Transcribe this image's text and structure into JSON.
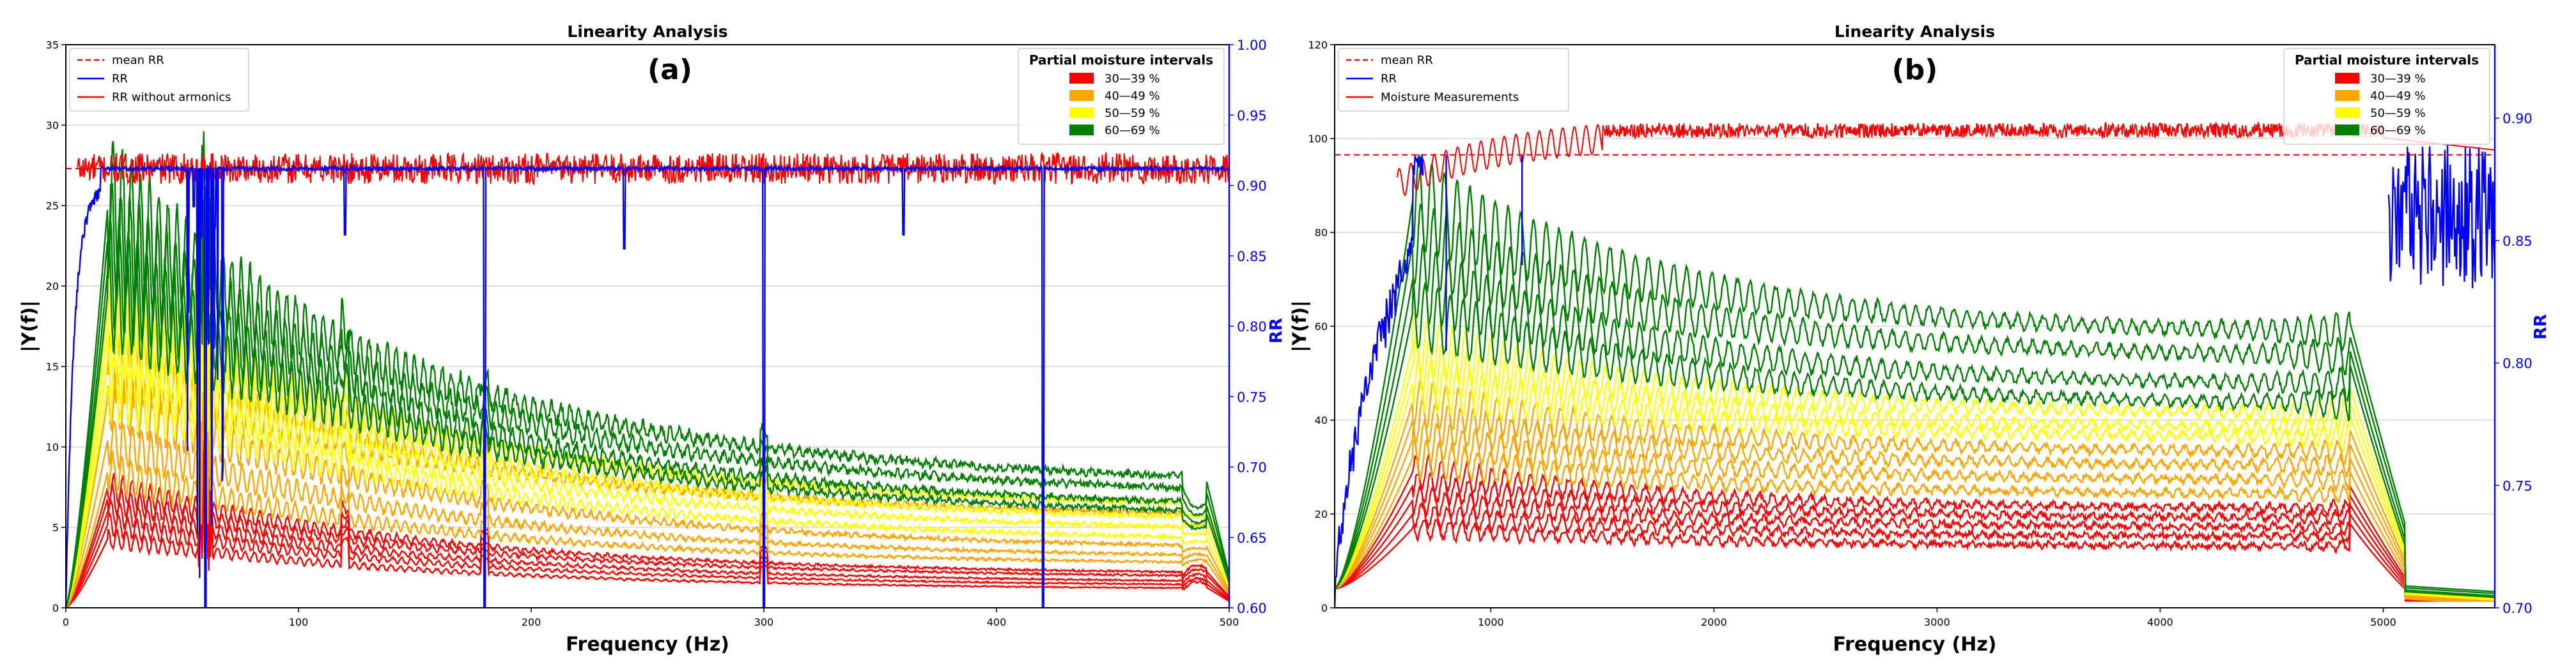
{
  "chart_data": [
    {
      "type": "line",
      "panel_label": "(a)",
      "title": "Linearity Analysis",
      "xlabel": "Frequency (Hz)",
      "ylabel": "|Y(f)|",
      "y2label": "RR",
      "xlim": [
        0,
        500
      ],
      "ylim": [
        0,
        35
      ],
      "y2lim": [
        0.6,
        1.0
      ],
      "xticks": [
        0,
        100,
        200,
        300,
        400,
        500
      ],
      "xtick_labels": [
        "0",
        "100",
        "200",
        "300",
        "400",
        "500"
      ],
      "yticks": [
        0,
        5,
        10,
        15,
        20,
        25,
        30,
        35
      ],
      "ytick_labels": [
        "0",
        "5",
        "10",
        "15",
        "20",
        "25",
        "30",
        "35"
      ],
      "y2ticks": [
        0.6,
        0.65,
        0.7,
        0.75,
        0.8,
        0.85,
        0.9,
        0.95,
        1.0
      ],
      "y2tick_labels": [
        "0.60",
        "0.65",
        "0.70",
        "0.75",
        "0.80",
        "0.85",
        "0.90",
        "0.95",
        "1.00"
      ],
      "legend_left": [
        {
          "label": "mean RR",
          "color": "#ff0000",
          "style": "dashed"
        },
        {
          "label": "RR",
          "color": "#0000ff",
          "style": "solid"
        },
        {
          "label": "RR without armonics",
          "color": "#ff0000",
          "style": "solid"
        }
      ],
      "legend_right_title": "Partial moisture intervals",
      "legend_right": [
        {
          "label": "30—39 %",
          "color": "#ff0000"
        },
        {
          "label": "40—49 %",
          "color": "#ffa500"
        },
        {
          "label": "50—59 %",
          "color": "#ffff00"
        },
        {
          "label": "60—69 %",
          "color": "#008000"
        }
      ],
      "mean_rr": 0.912,
      "rr_without_harmonics_level": 0.912,
      "rr_dips": [
        {
          "x": 55,
          "y": 0.885
        },
        {
          "x": 60,
          "y": 0.6
        },
        {
          "x": 64,
          "y": 0.87
        },
        {
          "x": 120,
          "y": 0.865
        },
        {
          "x": 180,
          "y": 0.6
        },
        {
          "x": 240,
          "y": 0.855
        },
        {
          "x": 300,
          "y": 0.6
        },
        {
          "x": 360,
          "y": 0.865
        },
        {
          "x": 420,
          "y": 0.6
        }
      ],
      "moisture_series": [
        {
          "group": "30—39 %",
          "color": "#ff0000",
          "peak": 7.5,
          "end": 2.0,
          "tail": 3.0,
          "bumps": [
            0.35,
            0.55,
            0.25
          ]
        },
        {
          "group": "30—39 %",
          "color": "#ff0000",
          "peak": 6.8,
          "end": 1.8,
          "tail": 2.7,
          "bumps": [
            0.3,
            0.5,
            0.25
          ]
        },
        {
          "group": "30—39 %",
          "color": "#ff0000",
          "peak": 6.0,
          "end": 1.5,
          "tail": 2.4,
          "bumps": [
            0.3,
            0.45,
            0.2
          ]
        },
        {
          "group": "30—39 %",
          "color": "#ff0000",
          "peak": 5.2,
          "end": 1.3,
          "tail": 2.1,
          "bumps": [
            0.25,
            0.4,
            0.2
          ]
        },
        {
          "group": "30—39 %",
          "color": "#ff0000",
          "peak": 4.3,
          "end": 1.1,
          "tail": 1.9,
          "bumps": [
            0.25,
            0.35,
            0.2
          ]
        },
        {
          "group": "40—49 %",
          "color": "#ffa500",
          "peak": 13.0,
          "end": 3.5,
          "tail": 3.8,
          "bumps": [
            0.5,
            0.8,
            0.3
          ]
        },
        {
          "group": "40—49 %",
          "color": "#ffa500",
          "peak": 10.5,
          "end": 3.0,
          "tail": 3.5,
          "bumps": [
            0.45,
            0.7,
            0.3
          ]
        },
        {
          "group": "40—49 %",
          "color": "#ffa500",
          "peak": 8.5,
          "end": 2.6,
          "tail": 3.2,
          "bumps": [
            0.4,
            0.6,
            0.3
          ]
        },
        {
          "group": "40—49 %",
          "color": "#ffa500",
          "peak": 15.5,
          "end": 5.5,
          "tail": 4.8,
          "bumps": [
            0.6,
            0.9,
            0.35
          ]
        },
        {
          "group": "50—59 %",
          "color": "#ffff00",
          "peak": 18.5,
          "end": 6.0,
          "tail": 5.5,
          "bumps": [
            0.7,
            1.0,
            0.4
          ]
        },
        {
          "group": "50—59 %",
          "color": "#ffff00",
          "peak": 17.0,
          "end": 5.2,
          "tail": 5.0,
          "bumps": [
            0.7,
            1.0,
            0.4
          ]
        },
        {
          "group": "50—59 %",
          "color": "#ffff00",
          "peak": 15.5,
          "end": 4.6,
          "tail": 4.6,
          "bumps": [
            0.6,
            0.9,
            0.35
          ]
        },
        {
          "group": "50—59 %",
          "color": "#ffff00",
          "peak": 14.0,
          "end": 4.0,
          "tail": 4.2,
          "bumps": [
            0.6,
            0.85,
            0.35
          ]
        },
        {
          "group": "60—69 %",
          "color": "#008000",
          "peak": 25.0,
          "end": 7.5,
          "tail": 5.5,
          "bumps": [
            0.8,
            1.1,
            0.45
          ]
        },
        {
          "group": "60—69 %",
          "color": "#008000",
          "peak": 23.0,
          "end": 6.8,
          "tail": 5.2,
          "bumps": [
            0.8,
            1.0,
            0.45
          ]
        },
        {
          "group": "60—69 %",
          "color": "#008000",
          "peak": 21.0,
          "end": 6.0,
          "tail": 4.9,
          "bumps": [
            0.7,
            1.0,
            0.4
          ]
        },
        {
          "group": "60—69 %",
          "color": "#008000",
          "peak": 19.5,
          "end": 5.5,
          "tail": 4.6,
          "bumps": [
            0.7,
            0.95,
            0.4
          ]
        }
      ]
    },
    {
      "type": "line",
      "panel_label": "(b)",
      "title": "Linearity Analysis",
      "xlabel": "Frequency (Hz)",
      "ylabel": "|Y(f)|",
      "y2label": "RR",
      "xlim": [
        300,
        5500
      ],
      "ylim": [
        0,
        120
      ],
      "y2lim": [
        0.7,
        0.93
      ],
      "xticks": [
        1000,
        2000,
        3000,
        4000,
        5000
      ],
      "xtick_labels": [
        "1000",
        "2000",
        "3000",
        "4000",
        "5000"
      ],
      "yticks": [
        0,
        20,
        40,
        60,
        80,
        100,
        120
      ],
      "ytick_labels": [
        "0",
        "20",
        "40",
        "60",
        "80",
        "100",
        "120"
      ],
      "y2ticks": [
        0.7,
        0.75,
        0.8,
        0.85,
        0.9
      ],
      "y2tick_labels": [
        "0.70",
        "0.75",
        "0.80",
        "0.85",
        "0.90"
      ],
      "legend_left": [
        {
          "label": "mean RR",
          "color": "#ff0000",
          "style": "dashed"
        },
        {
          "label": "RR",
          "color": "#0000ff",
          "style": "solid"
        },
        {
          "label": "Moisture Measurements",
          "color": "#ff0000",
          "style": "solid"
        }
      ],
      "legend_right_title": "Partial moisture intervals",
      "legend_right": [
        {
          "label": "30—39 %",
          "color": "#ff0000"
        },
        {
          "label": "40—49 %",
          "color": "#ffa500"
        },
        {
          "label": "50—59 %",
          "color": "#ffff00"
        },
        {
          "label": "60—69 %",
          "color": "#008000"
        }
      ],
      "mean_rr": 0.885,
      "moisture_measurements_level": 0.895,
      "moisture_series": [
        {
          "group": "30—39 %",
          "color": "#ff0000",
          "peak": 17,
          "end": 13,
          "tail": 18
        },
        {
          "group": "30—39 %",
          "color": "#ff0000",
          "peak": 20,
          "end": 15,
          "tail": 20
        },
        {
          "group": "30—39 %",
          "color": "#ff0000",
          "peak": 23,
          "end": 17,
          "tail": 22
        },
        {
          "group": "30—39 %",
          "color": "#ff0000",
          "peak": 26,
          "end": 19,
          "tail": 24
        },
        {
          "group": "30—39 %",
          "color": "#ff0000",
          "peak": 29,
          "end": 21,
          "tail": 26
        },
        {
          "group": "40—49 %",
          "color": "#ffa500",
          "peak": 32,
          "end": 24,
          "tail": 29
        },
        {
          "group": "40—49 %",
          "color": "#ffa500",
          "peak": 36,
          "end": 27,
          "tail": 32
        },
        {
          "group": "40—49 %",
          "color": "#ffa500",
          "peak": 40,
          "end": 30,
          "tail": 35
        },
        {
          "group": "40—49 %",
          "color": "#ffa500",
          "peak": 44,
          "end": 33,
          "tail": 38
        },
        {
          "group": "50—59 %",
          "color": "#ffff00",
          "peak": 48,
          "end": 36,
          "tail": 41
        },
        {
          "group": "50—59 %",
          "color": "#ffff00",
          "peak": 52,
          "end": 38,
          "tail": 44
        },
        {
          "group": "50—59 %",
          "color": "#ffff00",
          "peak": 56,
          "end": 41,
          "tail": 47
        },
        {
          "group": "60—69 %",
          "color": "#008000",
          "peak": 63,
          "end": 43,
          "tail": 52
        },
        {
          "group": "60—69 %",
          "color": "#008000",
          "peak": 70,
          "end": 47,
          "tail": 55
        },
        {
          "group": "60—69 %",
          "color": "#008000",
          "peak": 78,
          "end": 53,
          "tail": 58
        },
        {
          "group": "60—69 %",
          "color": "#008000",
          "peak": 87,
          "end": 58,
          "tail": 61
        }
      ]
    }
  ]
}
